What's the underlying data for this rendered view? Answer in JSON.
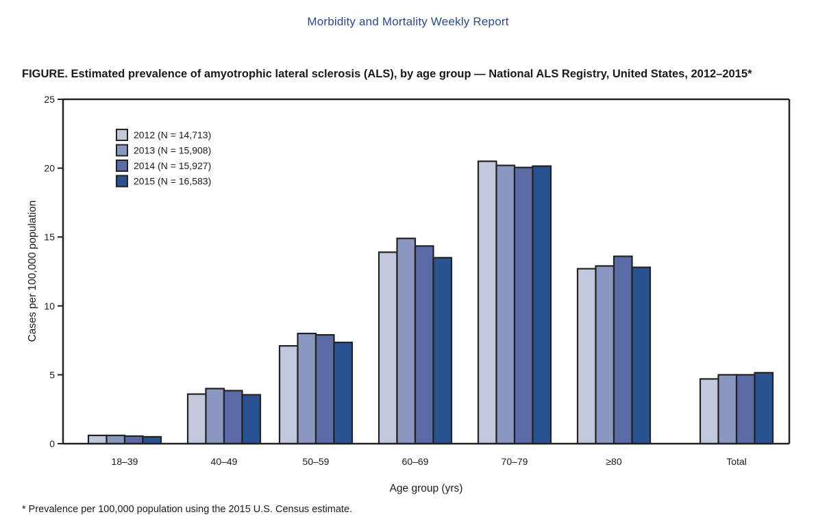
{
  "header": {
    "journal": "Morbidity and Mortality Weekly Report",
    "figure_title": "FIGURE. Estimated prevalence of amyotrophic lateral sclerosis (ALS), by age group — National ALS Registry, United States, 2012–2015*"
  },
  "footnote": "* Prevalence per 100,000 population using the 2015 U.S. Census estimate.",
  "chart_data": {
    "type": "bar",
    "title": "Estimated prevalence of amyotrophic lateral sclerosis (ALS), by age group — National ALS Registry, United States, 2012–2015*",
    "xlabel": "Age group (yrs)",
    "ylabel": "Cases per 100,000 population",
    "ylim": [
      0,
      25
    ],
    "yticks": [
      0,
      5,
      10,
      15,
      20,
      25
    ],
    "grid": false,
    "legend_position": "top-left",
    "categories": [
      "18–39",
      "40–49",
      "50–59",
      "60–69",
      "70–79",
      "≥80",
      "Total"
    ],
    "series": [
      {
        "name": "2012 (N = 14,713)",
        "color": "#c3c8dc",
        "values": [
          0.6,
          3.6,
          7.1,
          13.9,
          20.5,
          12.7,
          4.7
        ]
      },
      {
        "name": "2013 (N = 15,908)",
        "color": "#8a97c0",
        "values": [
          0.6,
          4.0,
          8.0,
          14.9,
          20.2,
          12.9,
          5.0
        ]
      },
      {
        "name": "2014 (N = 15,927)",
        "color": "#5a6ba6",
        "values": [
          0.55,
          3.85,
          7.9,
          14.35,
          20.05,
          13.6,
          5.0
        ]
      },
      {
        "name": "2015 (N = 16,583)",
        "color": "#2b5290",
        "values": [
          0.5,
          3.55,
          7.35,
          13.5,
          20.15,
          12.8,
          5.15
        ]
      }
    ]
  }
}
